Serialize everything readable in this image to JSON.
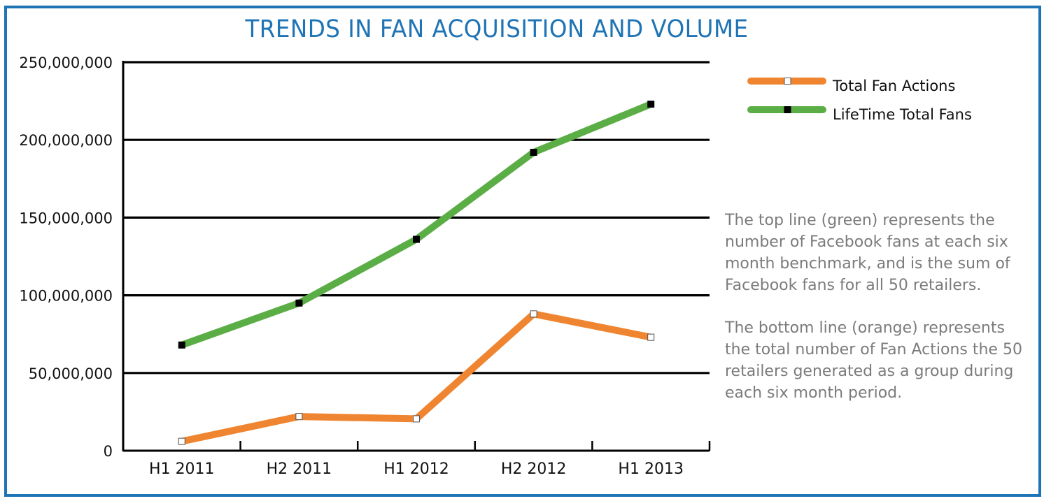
{
  "title": "TRENDS IN FAN ACQUISITION AND VOLUME",
  "notes": [
    "The top line (green) represents the number of Facebook fans at each six month benchmark, and is the sum of Facebook fans for all 50 retailers.",
    "The bottom line (orange) represents the total number of Fan Actions the 50 retailers generated as a group during each six month period."
  ],
  "chart_data": {
    "type": "line",
    "categories": [
      "H1 2011",
      "H2 2011",
      "H1 2012",
      "H2 2012",
      "H1 2013"
    ],
    "ylim": [
      0,
      250000000
    ],
    "yticks": [
      0,
      50000000,
      100000000,
      150000000,
      200000000,
      250000000
    ],
    "ytick_labels": [
      "0",
      "50,000,000",
      "100,000,000",
      "150,000,000",
      "200,000,000",
      "250,000,000"
    ],
    "grid": true,
    "legend_position": "top-right",
    "series": [
      {
        "name": "Total Fan Actions",
        "color": "#ef8530",
        "marker": "white-square",
        "values": [
          6000000,
          22000000,
          20500000,
          88000000,
          73000000
        ]
      },
      {
        "name": "LifeTime Total Fans",
        "color": "#5aae45",
        "marker": "black-square",
        "values": [
          68000000,
          95000000,
          136000000,
          192000000,
          223000000
        ]
      }
    ]
  }
}
